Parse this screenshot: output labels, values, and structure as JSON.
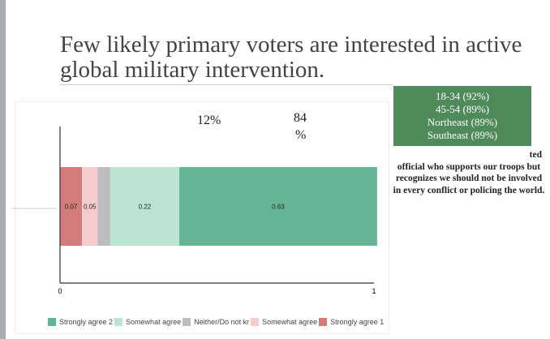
{
  "title": "Few likely primary voters are interested in active global military intervention.",
  "annotations": {
    "left_pct": "12%",
    "right_pct_line1": "84",
    "right_pct_line2": "%"
  },
  "highlight_box": [
    "18-34 (92%)",
    "45-54 (89%)",
    "Northeast (89%)",
    "Southeast (89%)"
  ],
  "note_lines": [
    "ted",
    "official who supports our troops but",
    "recognizes we should not be involved",
    "in every conflict or policing the world."
  ],
  "chart_data": {
    "type": "bar",
    "orientation": "horizontal",
    "stacked": true,
    "xlim": [
      0,
      1
    ],
    "x_ticks": [
      "0",
      "1"
    ],
    "series": [
      {
        "name": "Strongly agree 1",
        "value": 0.07,
        "label": "0.07",
        "color": "#d47c7c"
      },
      {
        "name": "Somewhat agree",
        "value": 0.05,
        "label": "0.05",
        "color": "#f5cccc"
      },
      {
        "name": "Neither/Do not kr",
        "value": 0.04,
        "label": "",
        "color": "#bdbdbd"
      },
      {
        "name": "Somewhat agree",
        "value": 0.22,
        "label": "0.22",
        "color": "#bde3d5"
      },
      {
        "name": "Strongly agree 2",
        "value": 0.63,
        "label": "0.63",
        "color": "#63b596"
      }
    ],
    "legend": [
      {
        "name": "Strongly agree 2",
        "color": "#63b596"
      },
      {
        "name": "Somewhat agree",
        "color": "#bde3d5"
      },
      {
        "name": "Neither/Do not kr",
        "color": "#bdbdbd"
      },
      {
        "name": "Somewhat agree",
        "color": "#f5cccc"
      },
      {
        "name": "Strongly agree 1",
        "color": "#d47c7c"
      }
    ],
    "legend_position": "bottom"
  }
}
